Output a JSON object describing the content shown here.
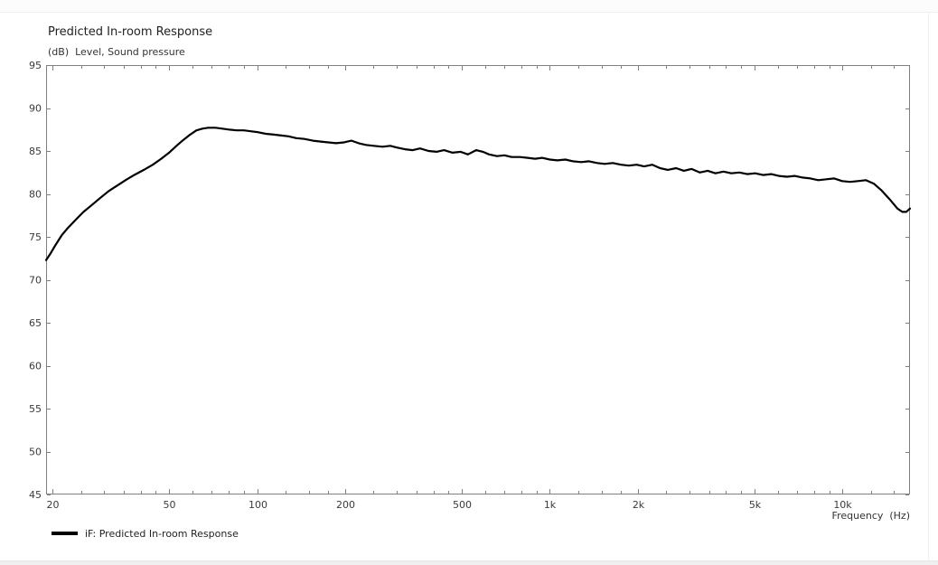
{
  "window": {
    "bg_color": "#ffffff",
    "top_edge_color": "#efefef",
    "bottom_bar_color": "#f0f0f0",
    "right_edge_color": "#f0f0f0"
  },
  "colors": {
    "axis": "#808080",
    "curve": "#000000",
    "tick_text": "#3a3a3a",
    "title_text": "#222222"
  },
  "chart_data": {
    "type": "line",
    "title": "Predicted In-room Response",
    "subtitle": "(dB)  Level, Sound pressure",
    "x_label": "Frequency  (Hz)",
    "x_scale": "log",
    "x_range": [
      19,
      17000
    ],
    "y_range": [
      45,
      95
    ],
    "grid": false,
    "legend_position": "bottom-left",
    "x_major_ticks": [
      {
        "value": 20,
        "label": "20"
      },
      {
        "value": 50,
        "label": "50"
      },
      {
        "value": 100,
        "label": "100"
      },
      {
        "value": 200,
        "label": "200"
      },
      {
        "value": 500,
        "label": "500"
      },
      {
        "value": 1000,
        "label": "1k"
      },
      {
        "value": 2000,
        "label": "2k"
      },
      {
        "value": 5000,
        "label": "5k"
      },
      {
        "value": 10000,
        "label": "10k"
      }
    ],
    "x_minor_ticks": [
      25,
      30,
      35,
      40,
      45,
      60,
      70,
      80,
      90,
      125,
      150,
      175,
      250,
      300,
      350,
      400,
      450,
      600,
      700,
      800,
      900,
      1250,
      1500,
      1750,
      2500,
      3000,
      3500,
      4000,
      4500,
      6000,
      7000,
      8000,
      9000,
      12500,
      15000
    ],
    "y_ticks": [
      45,
      50,
      55,
      60,
      65,
      70,
      75,
      80,
      85,
      90,
      95
    ],
    "series": [
      {
        "name": "iF: Predicted In-room Response",
        "color": "#000000",
        "points": [
          [
            19,
            72.3
          ],
          [
            19.7,
            73.1
          ],
          [
            20.5,
            74.1
          ],
          [
            21.5,
            75.2
          ],
          [
            22.5,
            76.0
          ],
          [
            24,
            77.0
          ],
          [
            25.5,
            77.9
          ],
          [
            27,
            78.6
          ],
          [
            29,
            79.5
          ],
          [
            31,
            80.3
          ],
          [
            33,
            80.9
          ],
          [
            35.5,
            81.6
          ],
          [
            38,
            82.2
          ],
          [
            41,
            82.8
          ],
          [
            44,
            83.4
          ],
          [
            47,
            84.1
          ],
          [
            50,
            84.8
          ],
          [
            53,
            85.6
          ],
          [
            56,
            86.3
          ],
          [
            59,
            86.9
          ],
          [
            62,
            87.4
          ],
          [
            65,
            87.6
          ],
          [
            68,
            87.7
          ],
          [
            72,
            87.7
          ],
          [
            76,
            87.6
          ],
          [
            80,
            87.5
          ],
          [
            85,
            87.4
          ],
          [
            90,
            87.4
          ],
          [
            95,
            87.3
          ],
          [
            100,
            87.2
          ],
          [
            107,
            87.0
          ],
          [
            114,
            86.9
          ],
          [
            121,
            86.8
          ],
          [
            128,
            86.7
          ],
          [
            136,
            86.5
          ],
          [
            145,
            86.4
          ],
          [
            155,
            86.2
          ],
          [
            165,
            86.1
          ],
          [
            175,
            86.0
          ],
          [
            186,
            85.9
          ],
          [
            198,
            86.0
          ],
          [
            210,
            86.2
          ],
          [
            222,
            85.9
          ],
          [
            235,
            85.7
          ],
          [
            250,
            85.6
          ],
          [
            268,
            85.5
          ],
          [
            285,
            85.6
          ],
          [
            300,
            85.4
          ],
          [
            320,
            85.2
          ],
          [
            340,
            85.1
          ],
          [
            360,
            85.3
          ],
          [
            385,
            85.0
          ],
          [
            410,
            84.9
          ],
          [
            435,
            85.1
          ],
          [
            465,
            84.8
          ],
          [
            495,
            84.9
          ],
          [
            525,
            84.6
          ],
          [
            560,
            85.1
          ],
          [
            590,
            84.9
          ],
          [
            620,
            84.6
          ],
          [
            660,
            84.4
          ],
          [
            700,
            84.5
          ],
          [
            740,
            84.3
          ],
          [
            790,
            84.3
          ],
          [
            840,
            84.2
          ],
          [
            890,
            84.1
          ],
          [
            940,
            84.2
          ],
          [
            1000,
            84.0
          ],
          [
            1060,
            83.9
          ],
          [
            1130,
            84.0
          ],
          [
            1200,
            83.8
          ],
          [
            1280,
            83.7
          ],
          [
            1360,
            83.8
          ],
          [
            1450,
            83.6
          ],
          [
            1540,
            83.5
          ],
          [
            1640,
            83.6
          ],
          [
            1750,
            83.4
          ],
          [
            1860,
            83.3
          ],
          [
            1980,
            83.4
          ],
          [
            2100,
            83.2
          ],
          [
            2240,
            83.4
          ],
          [
            2380,
            83.0
          ],
          [
            2530,
            82.8
          ],
          [
            2700,
            83.0
          ],
          [
            2870,
            82.7
          ],
          [
            3050,
            82.9
          ],
          [
            3250,
            82.5
          ],
          [
            3460,
            82.7
          ],
          [
            3680,
            82.4
          ],
          [
            3920,
            82.6
          ],
          [
            4170,
            82.4
          ],
          [
            4440,
            82.5
          ],
          [
            4720,
            82.3
          ],
          [
            5030,
            82.4
          ],
          [
            5350,
            82.2
          ],
          [
            5700,
            82.3
          ],
          [
            6060,
            82.1
          ],
          [
            6450,
            82.0
          ],
          [
            6860,
            82.1
          ],
          [
            7300,
            81.9
          ],
          [
            7770,
            81.8
          ],
          [
            8270,
            81.6
          ],
          [
            8800,
            81.7
          ],
          [
            9370,
            81.8
          ],
          [
            9970,
            81.5
          ],
          [
            10600,
            81.4
          ],
          [
            11290,
            81.5
          ],
          [
            12010,
            81.6
          ],
          [
            12780,
            81.2
          ],
          [
            13600,
            80.4
          ],
          [
            14470,
            79.4
          ],
          [
            15400,
            78.3
          ],
          [
            16000,
            77.9
          ],
          [
            16500,
            77.9
          ],
          [
            17000,
            78.3
          ]
        ]
      }
    ]
  }
}
